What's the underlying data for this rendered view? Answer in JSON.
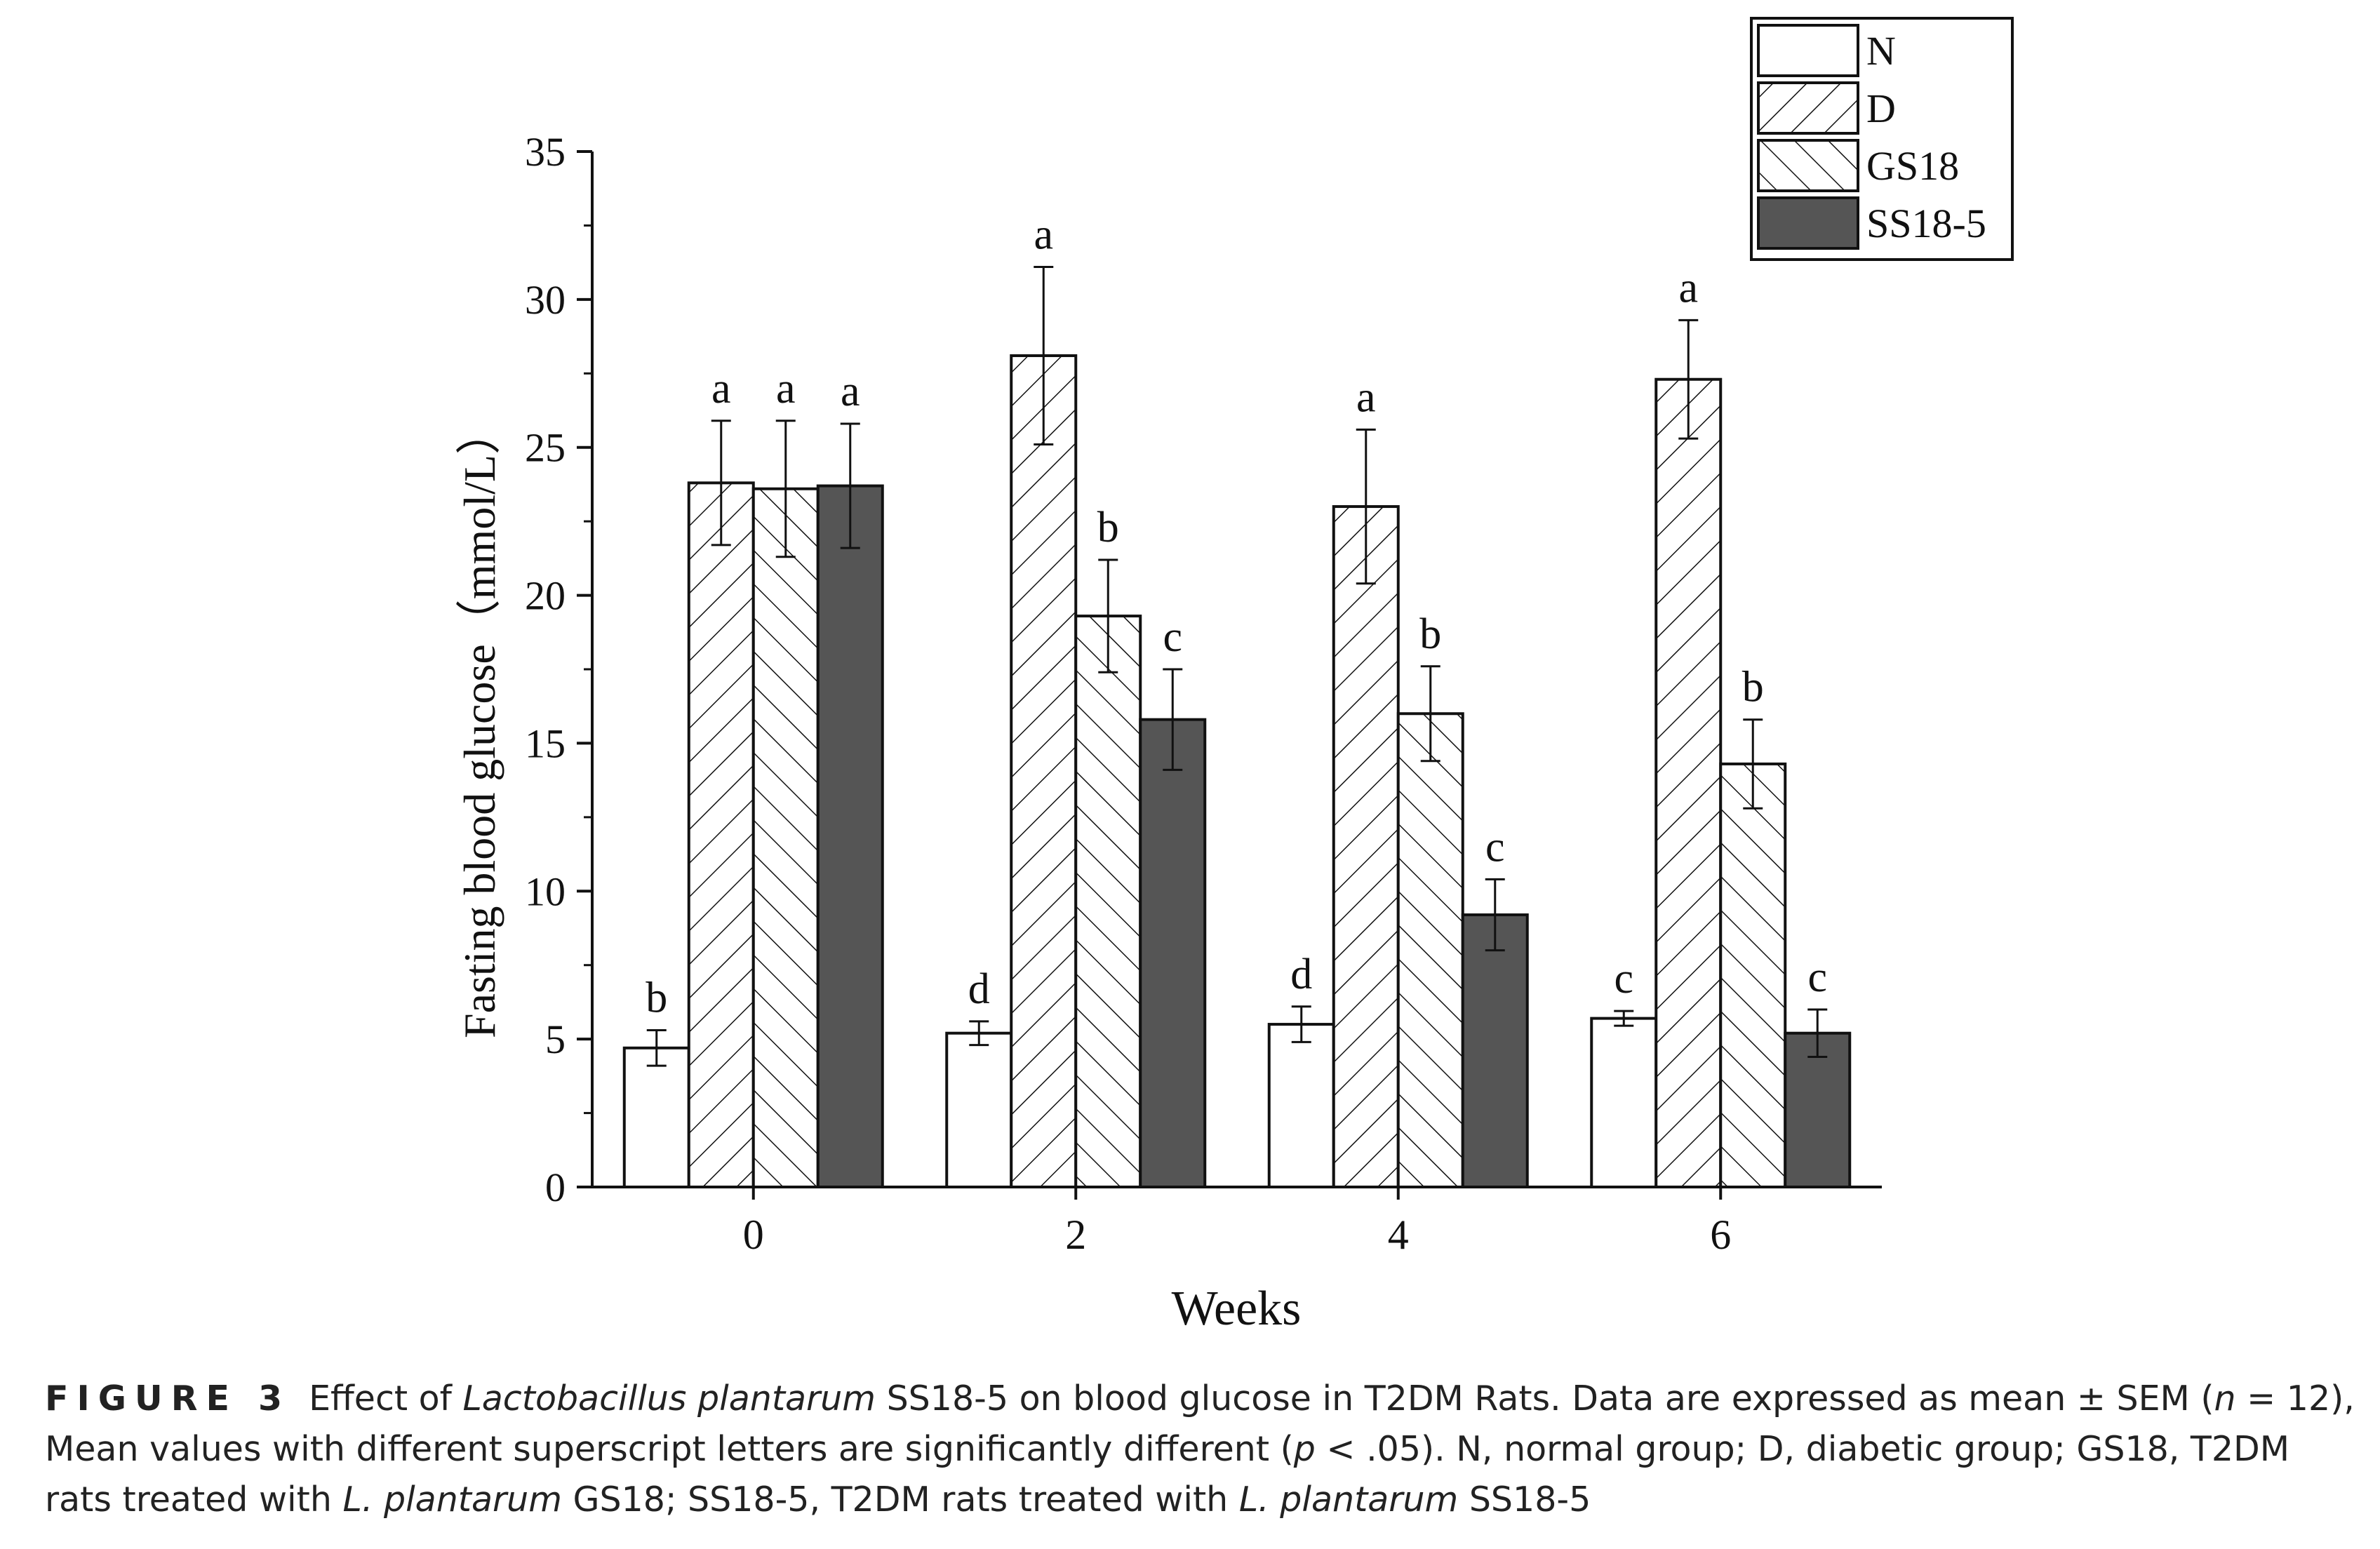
{
  "chart_data": {
    "type": "bar",
    "xlabel": "Weeks",
    "ylabel": "Fasting blood glucose（mmol/L）",
    "ylim": [
      0,
      35
    ],
    "yticks": [
      0,
      5,
      10,
      15,
      20,
      25,
      30,
      35
    ],
    "categories": [
      "0",
      "2",
      "4",
      "6"
    ],
    "legend_position": "top-right",
    "grid": false,
    "series": [
      {
        "name": "N",
        "fill": "white",
        "values": [
          4.7,
          5.2,
          5.5,
          5.7
        ],
        "errors": [
          0.6,
          0.4,
          0.6,
          0.25
        ],
        "letters": [
          "b",
          "d",
          "d",
          "c"
        ]
      },
      {
        "name": "D",
        "fill": "hatch-forward",
        "values": [
          23.8,
          28.1,
          23.0,
          27.3
        ],
        "errors": [
          2.1,
          3.0,
          2.6,
          2.0
        ],
        "letters": [
          "a",
          "a",
          "a",
          "a"
        ]
      },
      {
        "name": "GS18",
        "fill": "hatch-back",
        "values": [
          23.6,
          19.3,
          16.0,
          14.3
        ],
        "errors": [
          2.3,
          1.9,
          1.6,
          1.5
        ],
        "letters": [
          "a",
          "b",
          "b",
          "b"
        ]
      },
      {
        "name": "SS18-5",
        "fill": "#555555",
        "values": [
          23.7,
          15.8,
          9.2,
          5.2
        ],
        "errors": [
          2.1,
          1.7,
          1.2,
          0.8
        ],
        "letters": [
          "a",
          "c",
          "c",
          "c"
        ]
      }
    ]
  },
  "caption": {
    "label": "FIGURE 3",
    "s1": "Effect of ",
    "species": "Lactobacillus plantarum",
    "s2": " SS18-5 on blood glucose in T2DM Rats. Data are expressed as mean ± SEM (",
    "n_var": "n",
    "s3": " = 12), Mean values with different superscript letters are significantly different (",
    "p_var": "p",
    "s4": " < .05). N, normal group; D, diabetic group; GS18, T2DM rats treated with ",
    "abbr1": "L. plantarum",
    "s5": " GS18; SS18-5, T2DM rats treated with ",
    "abbr2": "L. plantarum",
    "s6": " SS18-5"
  }
}
